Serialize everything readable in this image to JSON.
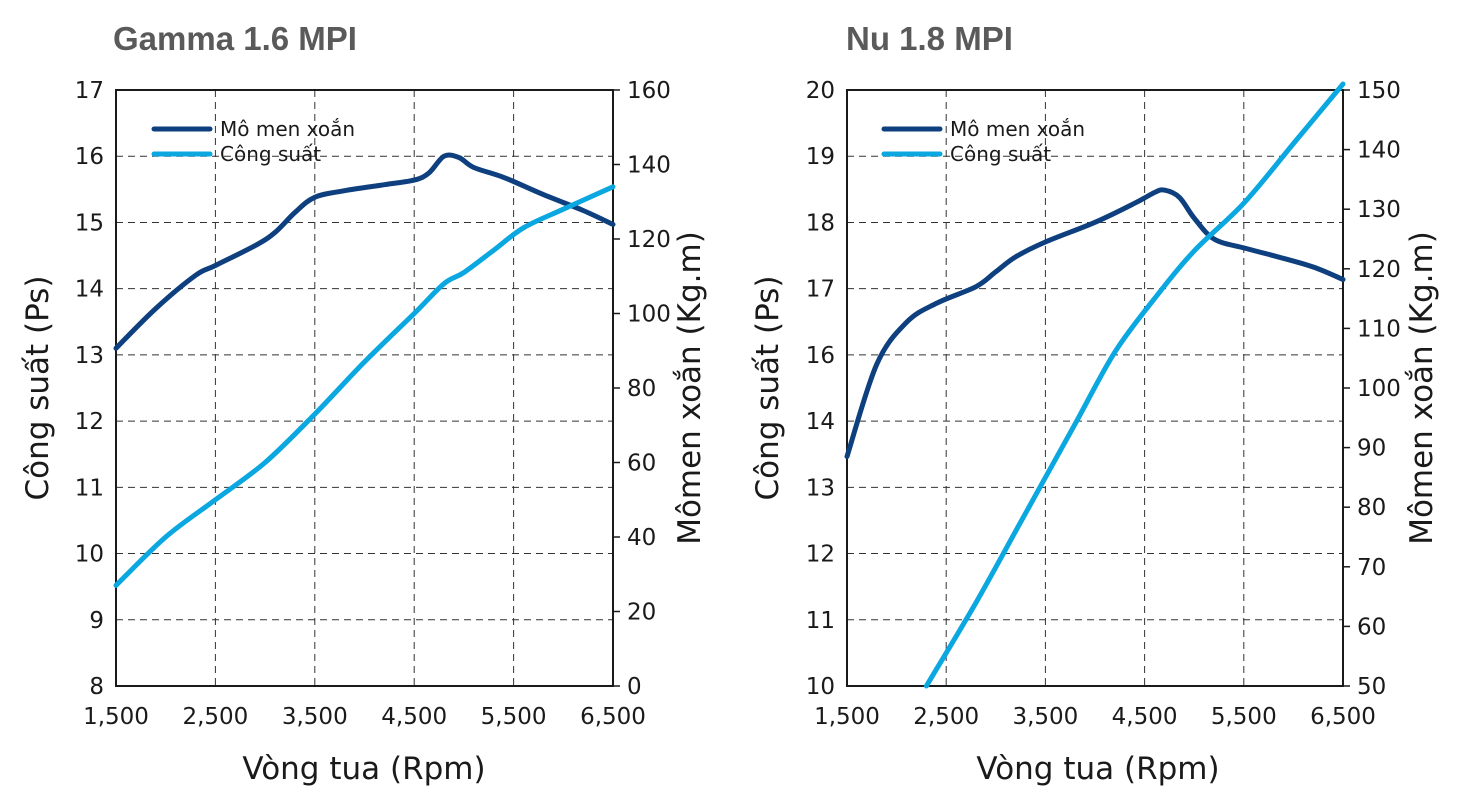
{
  "chart_data": [
    {
      "type": "line",
      "title": "Gamma 1.6 MPI",
      "xlabel": "Vòng tua (Rpm)",
      "ylabel": "Công suất (Ps)",
      "y2label": "Mômen xoắn (Kg.m)",
      "xticks": [
        "1,500",
        "2,500",
        "3,500",
        "4,500",
        "5,500",
        "6,500"
      ],
      "xlim": [
        1500,
        6500
      ],
      "yticks": [
        "8",
        "9",
        "10",
        "11",
        "12",
        "13",
        "14",
        "15",
        "16",
        "17"
      ],
      "ylim": [
        8,
        17
      ],
      "y2ticks": [
        "0",
        "20",
        "40",
        "60",
        "80",
        "100",
        "120",
        "140",
        "160"
      ],
      "y2lim": [
        0,
        160
      ],
      "grid": true,
      "legend": "top-left",
      "series": [
        {
          "name": "Mô men xoắn",
          "color": "#0e3f7e",
          "axis": "left",
          "x": [
            1500,
            1900,
            2300,
            2500,
            2900,
            3100,
            3300,
            3500,
            3800,
            4200,
            4500,
            4650,
            4800,
            4950,
            5100,
            5400,
            5800,
            6200,
            6500
          ],
          "y": [
            13.1,
            13.7,
            14.2,
            14.35,
            14.65,
            14.85,
            15.15,
            15.38,
            15.48,
            15.57,
            15.64,
            15.75,
            16.0,
            15.98,
            15.83,
            15.68,
            15.42,
            15.18,
            14.97
          ]
        },
        {
          "name": "Công suất",
          "color": "#0aa7e0",
          "axis": "right",
          "x": [
            1500,
            2000,
            2500,
            3000,
            3500,
            4000,
            4500,
            4800,
            5000,
            5300,
            5600,
            6000,
            6500
          ],
          "y": [
            27,
            40,
            50,
            60,
            73,
            87,
            100,
            108,
            111,
            117,
            123,
            128,
            134
          ]
        }
      ]
    },
    {
      "type": "line",
      "title": "Nu 1.8 MPI",
      "xlabel": "Vòng tua (Rpm)",
      "ylabel": "Công suất (Ps)",
      "y2label": "Mômen xoắn (Kg.m)",
      "xticks": [
        "1,500",
        "2,500",
        "3,500",
        "4,500",
        "5,500",
        "6,500"
      ],
      "xlim": [
        1500,
        6500
      ],
      "yticks": [
        "10",
        "11",
        "12",
        "13",
        "14",
        "16",
        "17",
        "18",
        "19",
        "20"
      ],
      "ylim": [
        10,
        20
      ],
      "y2ticks": [
        "50",
        "60",
        "70",
        "80",
        "90",
        "100",
        "110",
        "120",
        "130",
        "140",
        "150"
      ],
      "y2lim": [
        50,
        150
      ],
      "grid": true,
      "legend": "top-left",
      "series": [
        {
          "name": "Mô men xoắn",
          "color": "#0e3f7e",
          "axis": "left",
          "x": [
            1500,
            1800,
            2100,
            2400,
            2800,
            3000,
            3200,
            3500,
            4000,
            4400,
            4600,
            4700,
            4850,
            5000,
            5200,
            5500,
            5800,
            6200,
            6500
          ],
          "y": [
            13.85,
            15.4,
            16.1,
            16.42,
            16.7,
            16.95,
            17.2,
            17.45,
            17.78,
            18.1,
            18.28,
            18.32,
            18.2,
            17.85,
            17.5,
            17.35,
            17.22,
            17.03,
            16.82
          ]
        },
        {
          "name": "Công suất",
          "color": "#0aa7e0",
          "axis": "right",
          "x": [
            2300,
            2800,
            3300,
            3800,
            4200,
            4600,
            5000,
            5500,
            6000,
            6500
          ],
          "y": [
            50,
            64,
            79,
            94,
            106,
            115,
            123,
            131,
            141,
            151
          ]
        }
      ]
    }
  ]
}
